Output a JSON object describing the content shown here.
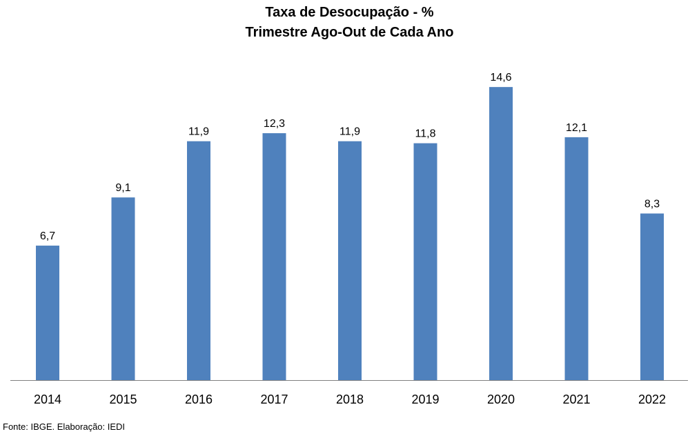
{
  "chart_data": {
    "type": "bar",
    "title": "Taxa de Desocupação - %",
    "subtitle": "Trimestre Ago-Out de Cada Ano",
    "categories": [
      "2014",
      "2015",
      "2016",
      "2017",
      "2018",
      "2019",
      "2020",
      "2021",
      "2022"
    ],
    "values": [
      6.7,
      9.1,
      11.9,
      12.3,
      11.9,
      11.8,
      14.6,
      12.1,
      8.3
    ],
    "value_labels": [
      "6,7",
      "9,1",
      "11,9",
      "12,3",
      "11,9",
      "11,8",
      "14,6",
      "12,1",
      "8,3"
    ],
    "ylim": [
      0,
      16
    ],
    "grid": false,
    "legend": "none",
    "bar_color": "#4F81BD",
    "axis_color": "#808080"
  },
  "source": "Fonte: IBGE. Elaboração: IEDI"
}
